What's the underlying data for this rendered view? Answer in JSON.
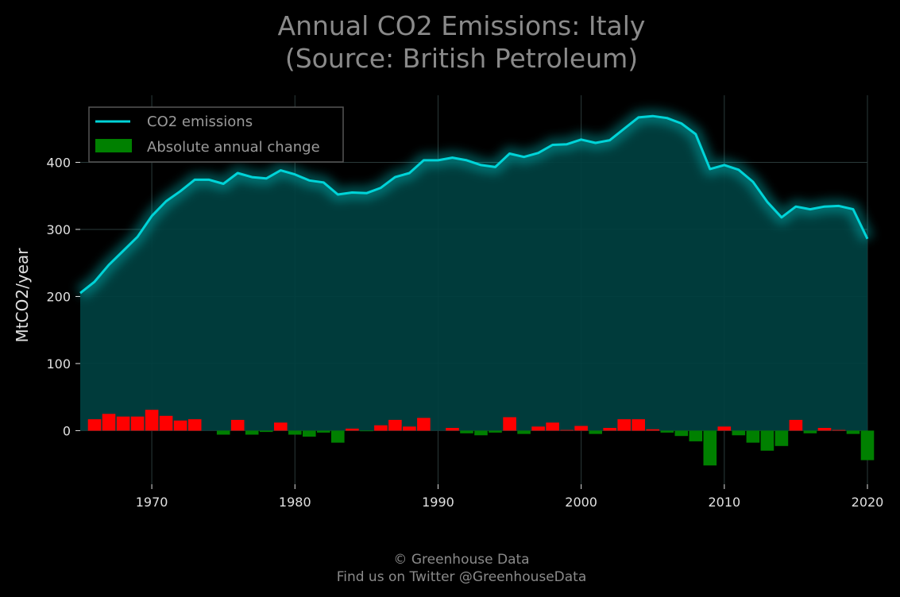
{
  "chart_data": {
    "type": "area",
    "title_lines": [
      "Annual CO2 Emissions: Italy",
      "(Source: British Petroleum)"
    ],
    "xlabel": "",
    "ylabel": "MtCO2/year",
    "xlim": [
      1965,
      2020
    ],
    "ylim": [
      -80,
      500
    ],
    "x_ticks": [
      1970,
      1980,
      1990,
      2000,
      2010,
      2020
    ],
    "y_ticks": [
      0,
      100,
      200,
      300,
      400
    ],
    "grid": true,
    "legend_position": "top-left",
    "x": [
      1965,
      1966,
      1967,
      1968,
      1969,
      1970,
      1971,
      1972,
      1973,
      1974,
      1975,
      1976,
      1977,
      1978,
      1979,
      1980,
      1981,
      1982,
      1983,
      1984,
      1985,
      1986,
      1987,
      1988,
      1989,
      1990,
      1991,
      1992,
      1993,
      1994,
      1995,
      1996,
      1997,
      1998,
      1999,
      2000,
      2001,
      2002,
      2003,
      2004,
      2005,
      2006,
      2007,
      2008,
      2009,
      2010,
      2011,
      2012,
      2013,
      2014,
      2015,
      2016,
      2017,
      2018,
      2019,
      2020
    ],
    "series": [
      {
        "name": "CO2 emissions",
        "kind": "line",
        "color": "#00d4d8",
        "values": [
          205,
          222,
          247,
          268,
          289,
          320,
          342,
          357,
          374,
          374,
          368,
          384,
          378,
          376,
          388,
          382,
          373,
          370,
          352,
          355,
          354,
          362,
          378,
          384,
          403,
          403,
          407,
          403,
          396,
          393,
          413,
          408,
          414,
          426,
          427,
          434,
          429,
          433,
          450,
          467,
          469,
          466,
          458,
          442,
          390,
          396,
          389,
          371,
          341,
          318,
          334,
          330,
          334,
          335,
          330,
          286
        ]
      },
      {
        "name": "Absolute annual change",
        "kind": "bar",
        "color_positive": "#ff0000",
        "color_negative": "#008000",
        "legend_color": "#008000",
        "values": [
          0,
          17,
          25,
          21,
          21,
          31,
          22,
          15,
          17,
          0,
          -6,
          16,
          -6,
          -2,
          12,
          -6,
          -9,
          -3,
          -18,
          3,
          -1,
          8,
          16,
          6,
          19,
          0,
          4,
          -4,
          -7,
          -3,
          20,
          -5,
          6,
          12,
          1,
          7,
          -5,
          4,
          17,
          17,
          2,
          -3,
          -8,
          -16,
          -52,
          6,
          -7,
          -18,
          -30,
          -23,
          16,
          -4,
          4,
          1,
          -5,
          -44
        ]
      }
    ],
    "colors": {
      "background": "#000000",
      "area_fill": "#004040",
      "grid": "#2a3a3a",
      "text": "#e0e0e0",
      "muted_text": "#8a8a8a"
    },
    "footer_lines": [
      "© Greenhouse Data",
      "Find us on Twitter @GreenhouseData"
    ]
  }
}
